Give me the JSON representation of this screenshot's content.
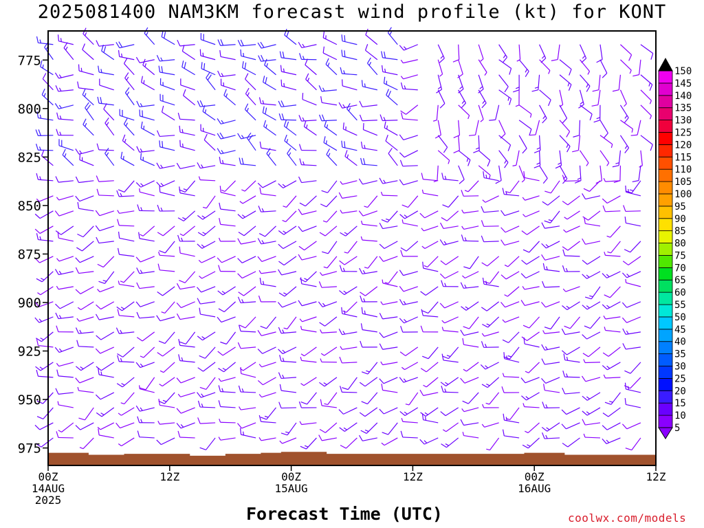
{
  "page": {
    "title": "2025081400 NAM3KM forecast wind profile (kt) for KONT",
    "credit": "coolwx.com/models"
  },
  "chart_data": {
    "type": "wind-barb-time-height",
    "title": "2025081400 NAM3KM forecast wind profile (kt) for KONT",
    "xlabel": "Forecast Time (UTC)",
    "ylabel": "",
    "units": "kt",
    "x_ticks": [
      {
        "hour": 0,
        "lines": [
          "00Z",
          "14AUG",
          "2025"
        ]
      },
      {
        "hour": 12,
        "lines": [
          "12Z"
        ]
      },
      {
        "hour": 24,
        "lines": [
          "00Z",
          "15AUG"
        ]
      },
      {
        "hour": 36,
        "lines": [
          "12Z"
        ]
      },
      {
        "hour": 48,
        "lines": [
          "00Z",
          "16AUG"
        ]
      },
      {
        "hour": 60,
        "lines": [
          "12Z"
        ]
      }
    ],
    "xlim": [
      0,
      60
    ],
    "y_ticks": [
      775,
      800,
      825,
      850,
      875,
      900,
      925,
      950,
      975
    ],
    "ylim": [
      984,
      760
    ],
    "y_axis_inverted": true,
    "colorbar": {
      "levels": [
        5,
        10,
        15,
        20,
        25,
        30,
        35,
        40,
        45,
        50,
        55,
        60,
        65,
        70,
        75,
        80,
        85,
        90,
        95,
        100,
        105,
        110,
        115,
        120,
        125,
        130,
        135,
        140,
        145,
        150
      ],
      "colors": [
        "#8a00ff",
        "#6a00ff",
        "#3a1cff",
        "#0010ff",
        "#0038ff",
        "#005cff",
        "#0080ff",
        "#00a4ff",
        "#00c8ff",
        "#00e8d8",
        "#00e8a0",
        "#00e060",
        "#00e020",
        "#50e800",
        "#a0f000",
        "#e8f400",
        "#ffe000",
        "#ffc000",
        "#ffa000",
        "#ff8c00",
        "#ff7000",
        "#ff5000",
        "#ff2800",
        "#ff0000",
        "#f0003c",
        "#e8006e",
        "#e000a0",
        "#e000d0",
        "#f000f0",
        "#ff00ff"
      ]
    },
    "surface_pressure_mb": [
      {
        "hour": 0,
        "value": 977.5
      },
      {
        "hour": 4,
        "value": 978.5
      },
      {
        "hour": 7.5,
        "value": 978
      },
      {
        "hour": 14,
        "value": 979
      },
      {
        "hour": 17.5,
        "value": 978
      },
      {
        "hour": 21,
        "value": 977.5
      },
      {
        "hour": 23,
        "value": 977
      },
      {
        "hour": 27.5,
        "value": 978
      },
      {
        "hour": 42.5,
        "value": 978
      },
      {
        "hour": 47,
        "value": 977.5
      },
      {
        "hour": 51,
        "value": 978.5
      },
      {
        "hour": 60,
        "value": 979
      }
    ],
    "wind_regimes": [
      {
        "label": "upper level westerly-northwesterly",
        "levels": [
          760,
          830
        ],
        "hours": [
          0,
          36
        ],
        "speed_kt_range": [
          10,
          20
        ],
        "direction_deg": 290
      },
      {
        "label": "upper level southerly-southeasterly",
        "levels": [
          760,
          830
        ],
        "hours": [
          37,
          60
        ],
        "speed_kt_range": [
          5,
          15
        ],
        "direction_deg": 160
      },
      {
        "label": "lower level westerly-southwesterly",
        "levels": [
          830,
          975
        ],
        "hours": [
          0,
          60
        ],
        "speed_kt_range": [
          5,
          15
        ],
        "direction_deg": 250
      }
    ]
  }
}
